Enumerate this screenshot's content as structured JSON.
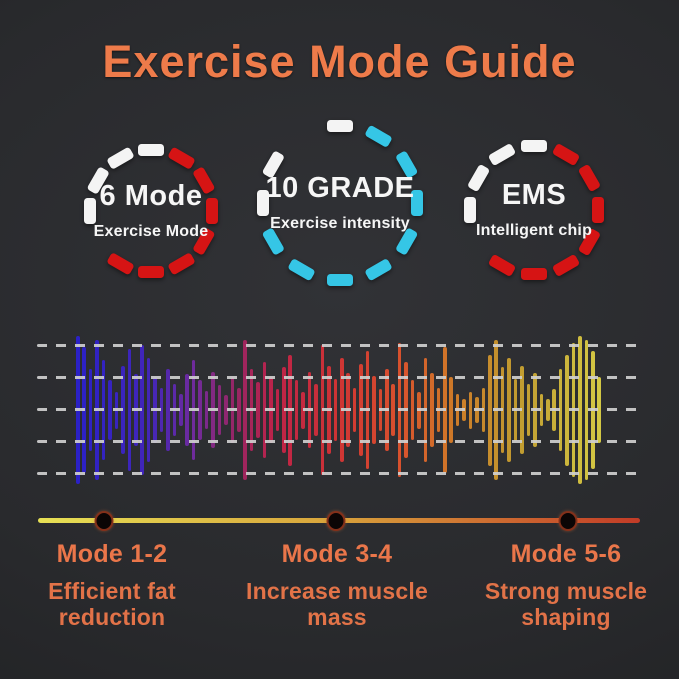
{
  "title": "Exercise Mode Guide",
  "colors": {
    "accent_orange": "#ee7b4a",
    "dash": {
      "white": "#f4f4f4",
      "red": "#d61414",
      "cyan": "#35c6e6"
    },
    "gridline": "#cfcfcf",
    "background_center": "#313236",
    "background_edge": "#1d1e20"
  },
  "badges": [
    {
      "heading": "6 Mode",
      "subheading": "Exercise Mode",
      "accent": "red",
      "segments": [
        "white",
        "red",
        "red",
        "red",
        "red",
        "red",
        "red",
        "red",
        "none",
        "white",
        "white",
        "white"
      ]
    },
    {
      "heading": "10 GRADE",
      "subheading": "Exercise intensity",
      "accent": "cyan",
      "segments": [
        "white",
        "cyan",
        "cyan",
        "cyan",
        "cyan",
        "cyan",
        "cyan",
        "cyan",
        "cyan",
        "white",
        "white",
        "none"
      ]
    },
    {
      "heading": "EMS",
      "subheading": "Intelligent chip",
      "accent": "red",
      "segments": [
        "white",
        "red",
        "red",
        "red",
        "red",
        "red",
        "red",
        "red",
        "none",
        "white",
        "white",
        "white"
      ]
    }
  ],
  "waveform": {
    "gridline_count": 5,
    "heights": [
      100,
      85,
      55,
      95,
      68,
      40,
      25,
      60,
      82,
      48,
      88,
      70,
      45,
      30,
      55,
      35,
      22,
      48,
      68,
      40,
      26,
      52,
      34,
      20,
      45,
      30,
      95,
      55,
      38,
      65,
      45,
      28,
      58,
      75,
      40,
      25,
      52,
      35,
      88,
      60,
      42,
      70,
      50,
      30,
      62,
      80,
      46,
      28,
      55,
      35,
      90,
      65,
      40,
      25,
      70,
      50,
      30,
      85,
      45,
      22,
      15,
      25,
      18,
      30,
      75,
      95,
      58,
      70,
      42,
      60,
      35,
      50,
      22,
      15,
      28,
      55,
      75,
      90,
      100,
      95,
      80,
      45
    ],
    "color_stops": [
      [
        0.0,
        "#2b21c6"
      ],
      [
        0.14,
        "#4326b8"
      ],
      [
        0.22,
        "#6e2b9e"
      ],
      [
        0.3,
        "#962665"
      ],
      [
        0.38,
        "#be2348"
      ],
      [
        0.5,
        "#ce3434"
      ],
      [
        0.62,
        "#d8522d"
      ],
      [
        0.72,
        "#ce7a28"
      ],
      [
        0.84,
        "#c09a30"
      ],
      [
        1.0,
        "#d3c844"
      ]
    ]
  },
  "timeline": {
    "gradient": [
      "#e6e055",
      "#d9a53c",
      "#c23b27"
    ],
    "dot_positions_pct": [
      11,
      49.5,
      88
    ]
  },
  "modes": [
    {
      "label": "Mode 1-2",
      "description": "Efficient fat reduction"
    },
    {
      "label": "Mode 3-4",
      "description": "Increase muscle mass"
    },
    {
      "label": "Mode 5-6",
      "description": "Strong muscle shaping"
    }
  ]
}
